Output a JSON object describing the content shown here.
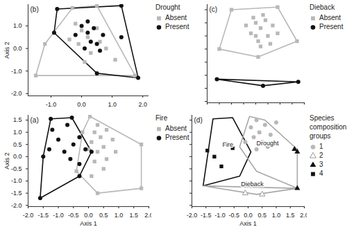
{
  "chart_data": [
    {
      "type": "scatter",
      "title": "(b)",
      "legend_title": "Drought",
      "legend": "right",
      "y_label": "Axis 2",
      "tick_labels": true,
      "xlim": [
        -1.75,
        2.2
      ],
      "ylim": [
        -2.1,
        1.95
      ],
      "xticks": [
        {
          "value": -1,
          "label": "-1.0"
        },
        {
          "value": 0,
          "label": "0.0"
        },
        {
          "value": 1,
          "label": "1.0"
        },
        {
          "value": 2,
          "label": "2.0"
        }
      ],
      "yticks": [
        {
          "value": -2,
          "label": "-2.0"
        },
        {
          "value": -1,
          "label": "-1.0"
        },
        {
          "value": 0,
          "label": "0.0"
        },
        {
          "value": 1,
          "label": "1.0"
        }
      ],
      "series": [
        {
          "name": "Absent",
          "color": "#b8b8b8",
          "marker": "square",
          "values": [
            [
              -1.5,
              -1.2
            ],
            [
              -1.2,
              0.2
            ],
            [
              -0.3,
              1.8
            ],
            [
              0.5,
              1.9
            ],
            [
              1.75,
              -1.2
            ],
            [
              0.0,
              0.8
            ],
            [
              0.2,
              0.5
            ],
            [
              -0.1,
              0.2
            ],
            [
              0.3,
              -0.2
            ],
            [
              0.5,
              0.9
            ],
            [
              -0.4,
              0.4
            ],
            [
              0.1,
              -0.6
            ],
            [
              0.6,
              0.3
            ],
            [
              -0.2,
              1.1
            ],
            [
              0.8,
              0.0
            ],
            [
              1.1,
              -0.5
            ]
          ]
        },
        {
          "name": "Present",
          "color": "#111111",
          "marker": "circle",
          "values": [
            [
              -0.8,
              1.75
            ],
            [
              1.3,
              1.9
            ],
            [
              1.85,
              -1.3
            ],
            [
              0.5,
              -1.1
            ],
            [
              -0.9,
              0.7
            ],
            [
              0.0,
              1.0
            ],
            [
              0.2,
              0.7
            ],
            [
              0.3,
              0.3
            ],
            [
              0.1,
              0.0
            ],
            [
              0.5,
              0.2
            ],
            [
              0.6,
              -0.1
            ],
            [
              1.3,
              0.5
            ],
            [
              -0.2,
              0.6
            ],
            [
              0.4,
              0.9
            ],
            [
              0.2,
              1.2
            ],
            [
              0.7,
              0.6
            ]
          ]
        }
      ]
    },
    {
      "type": "scatter",
      "title": "(c)",
      "legend_title": "Dieback",
      "legend": "right",
      "tick_labels": false,
      "xlim": [
        -2,
        2
      ],
      "ylim": [
        -2.05,
        1.7
      ],
      "xticks": [
        -2,
        -1.5,
        -1,
        -0.5,
        0,
        0.5,
        1,
        1.5,
        2
      ],
      "yticks": [
        -2,
        -1.5,
        -1,
        -0.5,
        0,
        0.5,
        1,
        1.5
      ],
      "series": [
        {
          "name": "Absent",
          "color": "#b8b8b8",
          "marker": "square",
          "values": [
            [
              -1.5,
              0.0
            ],
            [
              -1.0,
              1.5
            ],
            [
              0.9,
              1.6
            ],
            [
              1.7,
              0.3
            ],
            [
              0.1,
              -0.3
            ],
            [
              0.0,
              1.0
            ],
            [
              0.2,
              0.8
            ],
            [
              -0.2,
              0.6
            ],
            [
              0.4,
              1.1
            ],
            [
              0.5,
              0.5
            ],
            [
              0.1,
              0.3
            ],
            [
              -0.4,
              0.9
            ],
            [
              0.3,
              1.3
            ],
            [
              0.7,
              0.9
            ],
            [
              0.0,
              0.5
            ],
            [
              0.6,
              0.2
            ],
            [
              -0.1,
              1.2
            ],
            [
              0.2,
              0.1
            ],
            [
              0.9,
              0.6
            ]
          ]
        },
        {
          "name": "Present",
          "color": "#111111",
          "marker": "circle",
          "values": [
            [
              -1.6,
              -1.15
            ],
            [
              0.3,
              -1.4
            ],
            [
              1.75,
              -1.25
            ]
          ]
        }
      ]
    },
    {
      "type": "scatter",
      "title": "(a)",
      "legend_title": "Fire",
      "legend": "right",
      "x_label": "Axis 1",
      "y_label": "Axis 2",
      "tick_labels": true,
      "xlim": [
        -2,
        2
      ],
      "ylim": [
        -2.05,
        1.7
      ],
      "xticks": [
        {
          "value": -2,
          "label": "-2.0"
        },
        {
          "value": -1.5,
          "label": "-1.5"
        },
        {
          "value": -1,
          "label": "-1.0"
        },
        {
          "value": -0.5,
          "label": "-0.5"
        },
        {
          "value": 0,
          "label": "0.0"
        },
        {
          "value": 0.5,
          "label": "0.5"
        },
        {
          "value": 1,
          "label": "1.0"
        },
        {
          "value": 1.5,
          "label": "1.5"
        },
        {
          "value": 2,
          "label": "2.0"
        }
      ],
      "yticks": [
        {
          "value": -2,
          "label": "-2.0"
        },
        {
          "value": -1.5,
          "label": "-1.5"
        },
        {
          "value": -1,
          "label": "-1.0"
        },
        {
          "value": -0.5,
          "label": "-0.5"
        },
        {
          "value": 0,
          "label": "0.0"
        },
        {
          "value": 0.5,
          "label": "0.5"
        },
        {
          "value": 1,
          "label": "1.0"
        },
        {
          "value": 1.5,
          "label": "1.5"
        }
      ],
      "series": [
        {
          "name": "Absent",
          "color": "#b8b8b8",
          "marker": "square",
          "values": [
            [
              0.05,
              1.65
            ],
            [
              1.75,
              0.5
            ],
            [
              1.75,
              -1.3
            ],
            [
              0.3,
              -1.5
            ],
            [
              -0.4,
              -0.6
            ],
            [
              -0.2,
              1.0
            ],
            [
              0.2,
              1.0
            ],
            [
              0.4,
              0.8
            ],
            [
              0.1,
              0.6
            ],
            [
              0.5,
              0.4
            ],
            [
              0.3,
              0.2
            ],
            [
              0.6,
              1.1
            ],
            [
              0.0,
              0.3
            ],
            [
              0.8,
              0.7
            ],
            [
              0.2,
              -0.2
            ],
            [
              0.5,
              -0.5
            ],
            [
              0.9,
              0.2
            ],
            [
              0.3,
              1.3
            ],
            [
              0.1,
              -0.8
            ],
            [
              0.6,
              -0.1
            ]
          ]
        },
        {
          "name": "Present",
          "color": "#111111",
          "marker": "circle",
          "values": [
            [
              -1.25,
              1.55
            ],
            [
              -0.55,
              1.6
            ],
            [
              0.1,
              0.2
            ],
            [
              -0.3,
              -0.8
            ],
            [
              -1.6,
              -1.7
            ],
            [
              -1.2,
              1.1
            ],
            [
              -0.7,
              1.3
            ],
            [
              -1.0,
              0.7
            ],
            [
              -1.3,
              0.3
            ],
            [
              -0.8,
              0.2
            ],
            [
              -0.5,
              0.5
            ],
            [
              -0.3,
              0.8
            ],
            [
              -0.1,
              0.3
            ],
            [
              -0.3,
              -0.3
            ],
            [
              -0.6,
              -0.1
            ],
            [
              -1.5,
              0.0
            ]
          ]
        }
      ]
    },
    {
      "type": "scatter",
      "title": "(d)",
      "legend_title": "Species composition groups",
      "legend": "right",
      "x_label": "Axis 1",
      "tick_labels": "x",
      "xlim": [
        -2,
        2
      ],
      "ylim": [
        -2.05,
        1.7
      ],
      "xticks": [
        {
          "value": -2,
          "label": "-2.0"
        },
        {
          "value": -1.5,
          "label": "-1.5"
        },
        {
          "value": -1,
          "label": "-1.0"
        },
        {
          "value": -0.5,
          "label": "-0.5"
        },
        {
          "value": 0,
          "label": "0.0"
        },
        {
          "value": 0.5,
          "label": "0.5"
        },
        {
          "value": 1,
          "label": "1.0"
        },
        {
          "value": 1.5,
          "label": "1.5"
        },
        {
          "value": 2,
          "label": "2.0"
        }
      ],
      "yticks": [
        -2,
        -1.5,
        -1,
        -0.5,
        0,
        0.5,
        1,
        1.5
      ],
      "hulls": [
        {
          "name": "Fire",
          "color": "#111111",
          "points": [
            [
              -1.25,
              1.55
            ],
            [
              -0.55,
              1.6
            ],
            [
              0.1,
              0.2
            ],
            [
              -0.3,
              -0.8
            ],
            [
              -1.6,
              -1.2
            ]
          ]
        },
        {
          "name": "Drought",
          "color": "#a8a8a8",
          "points": [
            [
              0.05,
              1.65
            ],
            [
              0.6,
              1.5
            ],
            [
              1.75,
              0.3
            ],
            [
              1.75,
              -1.3
            ],
            [
              0.3,
              -0.6
            ],
            [
              -0.3,
              0.4
            ]
          ]
        },
        {
          "name": "Dieback",
          "color": "#a8a8a8",
          "points": [
            [
              -1.6,
              -1.2
            ],
            [
              1.75,
              -1.3
            ],
            [
              0.3,
              -1.55
            ]
          ]
        }
      ],
      "series": [
        {
          "name": "1",
          "color": "#b8b8b8",
          "marker": "circle",
          "values": [
            [
              0.3,
              1.5
            ],
            [
              0.6,
              1.3
            ],
            [
              0.4,
              1.0
            ],
            [
              0.8,
              0.9
            ],
            [
              0.2,
              0.8
            ],
            [
              0.5,
              0.6
            ],
            [
              0.1,
              1.2
            ],
            [
              1.0,
              1.4
            ],
            [
              0.7,
              0.4
            ],
            [
              0.3,
              0.3
            ],
            [
              -0.1,
              0.6
            ]
          ]
        },
        {
          "name": "2",
          "color": "#999999",
          "marker": "triangle_open",
          "values": [
            [
              -0.1,
              -1.5
            ],
            [
              0.5,
              -1.55
            ]
          ]
        },
        {
          "name": "3",
          "color": "#111111",
          "marker": "triangle",
          "values": [
            [
              1.65,
              0.3
            ],
            [
              1.75,
              0.2
            ],
            [
              1.75,
              -1.3
            ]
          ]
        },
        {
          "name": "4",
          "color": "#111111",
          "marker": "square",
          "values": [
            [
              -1.45,
              0.25
            ],
            [
              -1.2,
              0.0
            ],
            [
              -0.55,
              0.35
            ],
            [
              -0.95,
              -0.4
            ]
          ]
        }
      ]
    }
  ]
}
